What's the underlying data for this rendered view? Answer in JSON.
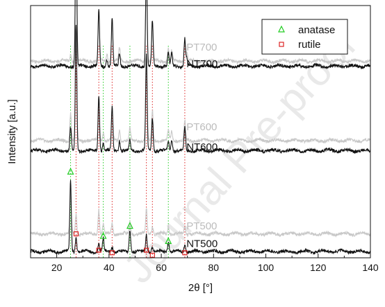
{
  "chart_data": {
    "type": "line",
    "xlabel": "2θ [°]",
    "ylabel": "Intensity [a.u.]",
    "xlim": [
      10,
      140
    ],
    "xticks": [
      20,
      40,
      60,
      80,
      100,
      120,
      140
    ],
    "grid": false,
    "legend": {
      "placement": "top-right",
      "entries": [
        {
          "label": "anatase",
          "marker": "triangle",
          "color": "#22cc22"
        },
        {
          "label": "rutile",
          "marker": "square",
          "color": "#dd2222"
        }
      ]
    },
    "reference_lines": {
      "anatase": [
        25.3,
        37.8,
        48.0,
        62.7
      ],
      "rutile": [
        27.4,
        36.1,
        41.2,
        54.3,
        56.6,
        69.0
      ]
    },
    "series": [
      {
        "name": "PT700",
        "color": "#c8c8c8",
        "baseline": 0.78,
        "peaks": [
          [
            25.3,
            0.03
          ],
          [
            27.4,
            0.47
          ],
          [
            36.1,
            0.2
          ],
          [
            39.2,
            0.03
          ],
          [
            41.2,
            0.15
          ],
          [
            44.0,
            0.05
          ],
          [
            54.3,
            0.36
          ],
          [
            56.6,
            0.16
          ],
          [
            62.7,
            0.05
          ],
          [
            64.0,
            0.04
          ],
          [
            69.0,
            0.08
          ],
          [
            69.8,
            0.03
          ]
        ]
      },
      {
        "name": "NT700",
        "color": "#111111",
        "baseline": 0.76,
        "peaks": [
          [
            27.4,
            0.57
          ],
          [
            36.1,
            0.22
          ],
          [
            39.2,
            0.03
          ],
          [
            41.2,
            0.19
          ],
          [
            44.0,
            0.05
          ],
          [
            54.3,
            0.4
          ],
          [
            56.6,
            0.18
          ],
          [
            62.7,
            0.05
          ],
          [
            64.0,
            0.05
          ],
          [
            69.0,
            0.11
          ],
          [
            69.8,
            0.03
          ]
        ]
      },
      {
        "name": "PT600",
        "color": "#c8c8c8",
        "baseline": 0.465,
        "peaks": [
          [
            25.3,
            0.11
          ],
          [
            27.4,
            0.45
          ],
          [
            36.1,
            0.18
          ],
          [
            37.8,
            0.03
          ],
          [
            41.2,
            0.12
          ],
          [
            44.0,
            0.04
          ],
          [
            48.0,
            0.05
          ],
          [
            54.3,
            0.33
          ],
          [
            56.6,
            0.12
          ],
          [
            62.7,
            0.04
          ],
          [
            64.0,
            0.04
          ],
          [
            69.0,
            0.08
          ]
        ]
      },
      {
        "name": "NT600",
        "color": "#111111",
        "baseline": 0.425,
        "peaks": [
          [
            25.3,
            0.09
          ],
          [
            27.4,
            0.5
          ],
          [
            36.1,
            0.22
          ],
          [
            37.8,
            0.03
          ],
          [
            41.2,
            0.17
          ],
          [
            44.0,
            0.04
          ],
          [
            48.0,
            0.04
          ],
          [
            54.3,
            0.38
          ],
          [
            56.6,
            0.13
          ],
          [
            62.7,
            0.04
          ],
          [
            64.0,
            0.04
          ],
          [
            69.0,
            0.09
          ]
        ]
      },
      {
        "name": "PT500",
        "color": "#c8c8c8",
        "baseline": 0.095,
        "peaks": [
          [
            25.3,
            0.16
          ],
          [
            27.4,
            0.08
          ],
          [
            36.1,
            0.1
          ],
          [
            37.8,
            0.04
          ],
          [
            41.2,
            0.04
          ],
          [
            48.0,
            0.05
          ],
          [
            54.3,
            0.1
          ],
          [
            56.6,
            0.03
          ],
          [
            62.7,
            0.03
          ],
          [
            69.0,
            0.03
          ]
        ]
      },
      {
        "name": "NT500",
        "color": "#111111",
        "baseline": 0.025,
        "peaks": [
          [
            25.3,
            0.28
          ],
          [
            27.4,
            0.06
          ],
          [
            36.1,
            0.03
          ],
          [
            37.8,
            0.05
          ],
          [
            41.2,
            0.02
          ],
          [
            48.0,
            0.09
          ],
          [
            54.3,
            0.07
          ],
          [
            56.6,
            0.02
          ],
          [
            62.7,
            0.04
          ],
          [
            69.0,
            0.03
          ]
        ]
      }
    ],
    "markers": {
      "anatase": [
        [
          25.3,
          0.34
        ],
        [
          37.8,
          0.085
        ],
        [
          48.0,
          0.125
        ],
        [
          62.7,
          0.065
        ]
      ],
      "rutile": [
        [
          27.4,
          0.095
        ],
        [
          36.1,
          0.03
        ],
        [
          41.2,
          0.02
        ],
        [
          54.3,
          0.03
        ],
        [
          56.6,
          0.01
        ],
        [
          69.0,
          0.02
        ]
      ]
    }
  },
  "watermark": "Journal Pre-proof"
}
